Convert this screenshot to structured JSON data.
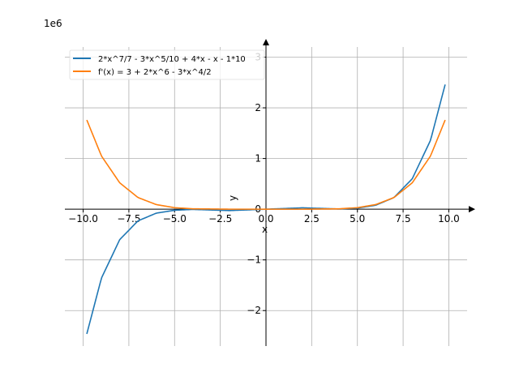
{
  "chart_data": {
    "type": "line",
    "offset_label": "1e6",
    "xlabel": "x",
    "ylabel": "y",
    "xlim": [
      -11,
      11
    ],
    "ylim": [
      -2.7,
      3.2
    ],
    "x_ticks": [
      -10,
      -7.5,
      -5,
      -2.5,
      0,
      2.5,
      5,
      7.5,
      10
    ],
    "x_tick_labels": [
      "−10.0",
      "−7.5",
      "−5.0",
      "−2.5",
      "0.0",
      "2.5",
      "5.0",
      "7.5",
      "10.0"
    ],
    "y_ticks": [
      -2,
      -1,
      0,
      1,
      2,
      3
    ],
    "y_tick_labels": [
      "−2",
      "−1",
      "0",
      "1",
      "2",
      "3"
    ],
    "y_unit_scale": 1000000,
    "x_range": [
      -9.8,
      9.8
    ],
    "grid": true,
    "legend_position": "top-left",
    "series": [
      {
        "name": "2*x^7/7 - 3*x^5/10 + 4*x - x - 1*10",
        "color": "#1f77b4",
        "values": [
          [
            -9.8,
            -2.46
          ],
          [
            -9.0,
            -1.36
          ],
          [
            -8.0,
            -0.6
          ],
          [
            -7.0,
            -0.23
          ],
          [
            -6.0,
            -0.078
          ],
          [
            -5.0,
            -0.021
          ],
          [
            -4.0,
            -0.0044
          ],
          [
            -2.0,
            -0.027
          ],
          [
            0.0,
            -1e-05
          ],
          [
            2.0,
            0.027
          ],
          [
            4.0,
            0.0044
          ],
          [
            5.0,
            0.021
          ],
          [
            6.0,
            0.078
          ],
          [
            7.0,
            0.23
          ],
          [
            8.0,
            0.6
          ],
          [
            9.0,
            1.36
          ],
          [
            9.8,
            2.46
          ]
        ]
      },
      {
        "name": "f'(x) = 3 + 2*x^6 - 3*x^4/2",
        "color": "#ff7f0e",
        "values": [
          [
            -9.8,
            1.76
          ],
          [
            -9.0,
            1.05
          ],
          [
            -8.0,
            0.52
          ],
          [
            -7.0,
            0.23
          ],
          [
            -6.0,
            0.091
          ],
          [
            -5.0,
            0.03
          ],
          [
            -4.0,
            0.0078
          ],
          [
            -2.0,
            0.0001
          ],
          [
            0.0,
            3e-06
          ],
          [
            2.0,
            0.0001
          ],
          [
            4.0,
            0.0078
          ],
          [
            5.0,
            0.03
          ],
          [
            6.0,
            0.091
          ],
          [
            7.0,
            0.23
          ],
          [
            8.0,
            0.52
          ],
          [
            9.0,
            1.05
          ],
          [
            9.8,
            1.76
          ]
        ]
      }
    ]
  }
}
